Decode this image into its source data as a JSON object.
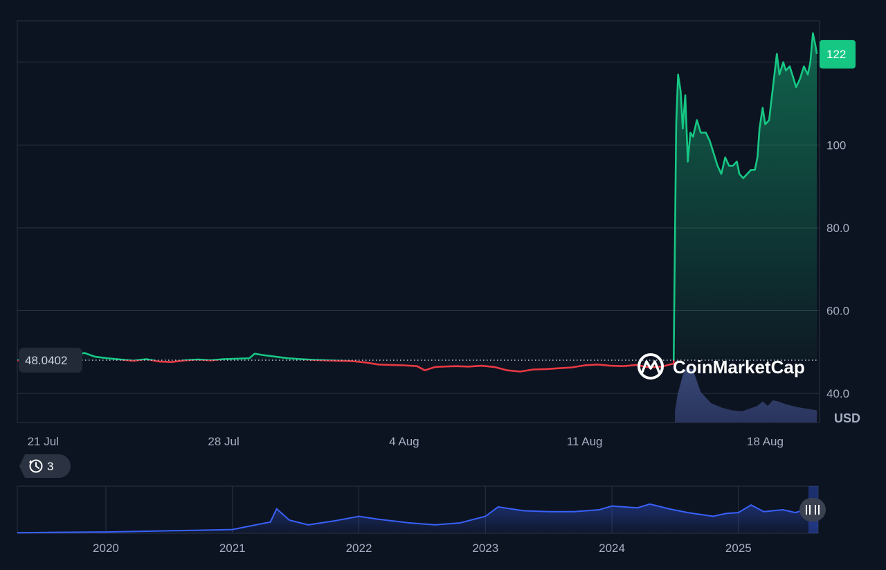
{
  "chart_data": {
    "type": "line",
    "unit": "USD",
    "reference_value": "48.0402",
    "last_value_label": "122",
    "ylim": [
      33,
      130
    ],
    "y_ticks": [
      "40.0",
      "60.0",
      "80.0",
      "100",
      "122"
    ],
    "y_tick_values": [
      40,
      60,
      80,
      100
    ],
    "x_tick_labels": [
      "21 Jul",
      "28 Jul",
      "4 Aug",
      "11 Aug",
      "18 Aug"
    ],
    "x_tick_days": [
      1,
      8,
      15,
      22,
      29
    ],
    "x_range_days": [
      0.0,
      31.0
    ],
    "x_label_start": "20 Jul",
    "colors": {
      "up": "#16c784",
      "down": "#ea3943",
      "background": "#0d1421",
      "navigator": "#3861fb"
    },
    "series": [
      {
        "points": [
          [
            0.0,
            48.0
          ],
          [
            0.5,
            48.2
          ],
          [
            1.0,
            48.4
          ],
          [
            1.5,
            48.1
          ],
          [
            2.0,
            48.6
          ],
          [
            2.6,
            49.8
          ],
          [
            3.0,
            48.9
          ],
          [
            3.5,
            48.5
          ],
          [
            4.0,
            48.2
          ],
          [
            4.5,
            47.9
          ],
          [
            5.0,
            48.3
          ],
          [
            5.5,
            47.7
          ],
          [
            6.0,
            47.6
          ],
          [
            6.5,
            48.0
          ],
          [
            7.0,
            48.2
          ],
          [
            7.5,
            48.0
          ],
          [
            8.0,
            48.3
          ],
          [
            8.5,
            48.4
          ],
          [
            9.0,
            48.5
          ],
          [
            9.2,
            49.6
          ],
          [
            9.5,
            49.3
          ],
          [
            10.0,
            48.9
          ],
          [
            10.5,
            48.5
          ],
          [
            11.0,
            48.3
          ],
          [
            11.5,
            48.1
          ],
          [
            12.0,
            48.0
          ],
          [
            12.5,
            47.9
          ],
          [
            13.0,
            47.8
          ],
          [
            13.5,
            47.5
          ],
          [
            14.0,
            47.0
          ],
          [
            14.5,
            46.9
          ],
          [
            15.0,
            46.8
          ],
          [
            15.5,
            46.6
          ],
          [
            15.8,
            45.6
          ],
          [
            16.2,
            46.4
          ],
          [
            16.5,
            46.5
          ],
          [
            17.0,
            46.6
          ],
          [
            17.5,
            46.5
          ],
          [
            18.0,
            46.7
          ],
          [
            18.5,
            46.4
          ],
          [
            19.0,
            45.6
          ],
          [
            19.5,
            45.3
          ],
          [
            20.0,
            45.8
          ],
          [
            20.5,
            45.9
          ],
          [
            21.0,
            46.1
          ],
          [
            21.5,
            46.3
          ],
          [
            22.0,
            46.8
          ],
          [
            22.5,
            47.0
          ],
          [
            23.0,
            46.7
          ],
          [
            23.5,
            46.6
          ],
          [
            24.0,
            46.9
          ],
          [
            24.5,
            46.3
          ],
          [
            25.0,
            46.5
          ],
          [
            25.3,
            47.0
          ],
          [
            25.45,
            47.2
          ],
          [
            25.55,
            105
          ],
          [
            25.62,
            117
          ],
          [
            25.72,
            113
          ],
          [
            25.8,
            104
          ],
          [
            25.9,
            112
          ],
          [
            26.0,
            96
          ],
          [
            26.1,
            103
          ],
          [
            26.2,
            102
          ],
          [
            26.35,
            106
          ],
          [
            26.5,
            103
          ],
          [
            26.7,
            103
          ],
          [
            26.85,
            101
          ],
          [
            27.0,
            98
          ],
          [
            27.15,
            95
          ],
          [
            27.3,
            93
          ],
          [
            27.45,
            97
          ],
          [
            27.6,
            95
          ],
          [
            27.75,
            95
          ],
          [
            27.9,
            96
          ],
          [
            28.0,
            93
          ],
          [
            28.15,
            92
          ],
          [
            28.3,
            93
          ],
          [
            28.45,
            94
          ],
          [
            28.6,
            94
          ],
          [
            28.7,
            97
          ],
          [
            28.78,
            104
          ],
          [
            28.9,
            109
          ],
          [
            29.0,
            105
          ],
          [
            29.15,
            106
          ],
          [
            29.3,
            114
          ],
          [
            29.45,
            122
          ],
          [
            29.55,
            117
          ],
          [
            29.7,
            120
          ],
          [
            29.8,
            118
          ],
          [
            29.95,
            119
          ],
          [
            30.05,
            117
          ],
          [
            30.2,
            114
          ],
          [
            30.35,
            116
          ],
          [
            30.5,
            119
          ],
          [
            30.65,
            117
          ],
          [
            30.75,
            120
          ],
          [
            30.85,
            127
          ],
          [
            30.95,
            124
          ],
          [
            31.0,
            122
          ]
        ]
      }
    ],
    "navigator": {
      "x_tick_labels": [
        "2020",
        "2021",
        "2022",
        "2023",
        "2024",
        "2025"
      ],
      "x_tick_years": [
        2020,
        2021,
        2022,
        2023,
        2024,
        2025
      ],
      "x_range_years": [
        2019.3,
        2025.63
      ],
      "ylim": [
        0,
        25
      ],
      "points": [
        [
          2019.3,
          0.3
        ],
        [
          2019.6,
          0.5
        ],
        [
          2020.0,
          0.7
        ],
        [
          2020.4,
          1.2
        ],
        [
          2020.8,
          1.7
        ],
        [
          2021.0,
          2.0
        ],
        [
          2021.15,
          4.0
        ],
        [
          2021.3,
          6.0
        ],
        [
          2021.35,
          13.0
        ],
        [
          2021.45,
          7.0
        ],
        [
          2021.6,
          4.5
        ],
        [
          2021.8,
          6.5
        ],
        [
          2022.0,
          9.0
        ],
        [
          2022.15,
          7.5
        ],
        [
          2022.4,
          5.5
        ],
        [
          2022.6,
          4.5
        ],
        [
          2022.8,
          5.5
        ],
        [
          2023.0,
          9.0
        ],
        [
          2023.1,
          14.0
        ],
        [
          2023.3,
          12.0
        ],
        [
          2023.5,
          11.5
        ],
        [
          2023.7,
          11.5
        ],
        [
          2023.9,
          12.5
        ],
        [
          2024.0,
          14.5
        ],
        [
          2024.2,
          13.5
        ],
        [
          2024.3,
          15.5
        ],
        [
          2024.45,
          13.0
        ],
        [
          2024.6,
          11.0
        ],
        [
          2024.8,
          9.0
        ],
        [
          2024.9,
          10.5
        ],
        [
          2025.0,
          11.0
        ],
        [
          2025.1,
          15.0
        ],
        [
          2025.2,
          11.5
        ],
        [
          2025.35,
          12.5
        ],
        [
          2025.45,
          11.0
        ],
        [
          2025.55,
          13.0
        ],
        [
          2025.63,
          14.0
        ]
      ]
    },
    "volume": {
      "points": [
        [
          25.5,
          0.2
        ],
        [
          25.6,
          0.5
        ],
        [
          25.8,
          0.85
        ],
        [
          25.95,
          1.0
        ],
        [
          26.2,
          0.95
        ],
        [
          26.5,
          0.55
        ],
        [
          26.9,
          0.35
        ],
        [
          27.3,
          0.27
        ],
        [
          27.7,
          0.22
        ],
        [
          28.1,
          0.2
        ],
        [
          28.4,
          0.25
        ],
        [
          28.7,
          0.3
        ],
        [
          28.9,
          0.38
        ],
        [
          29.1,
          0.3
        ],
        [
          29.3,
          0.4
        ],
        [
          29.5,
          0.38
        ],
        [
          29.8,
          0.33
        ],
        [
          30.2,
          0.28
        ],
        [
          30.6,
          0.25
        ],
        [
          31.0,
          0.22
        ]
      ]
    }
  },
  "history": {
    "count": "3"
  },
  "brand": {
    "name": "CoinMarketCap"
  }
}
